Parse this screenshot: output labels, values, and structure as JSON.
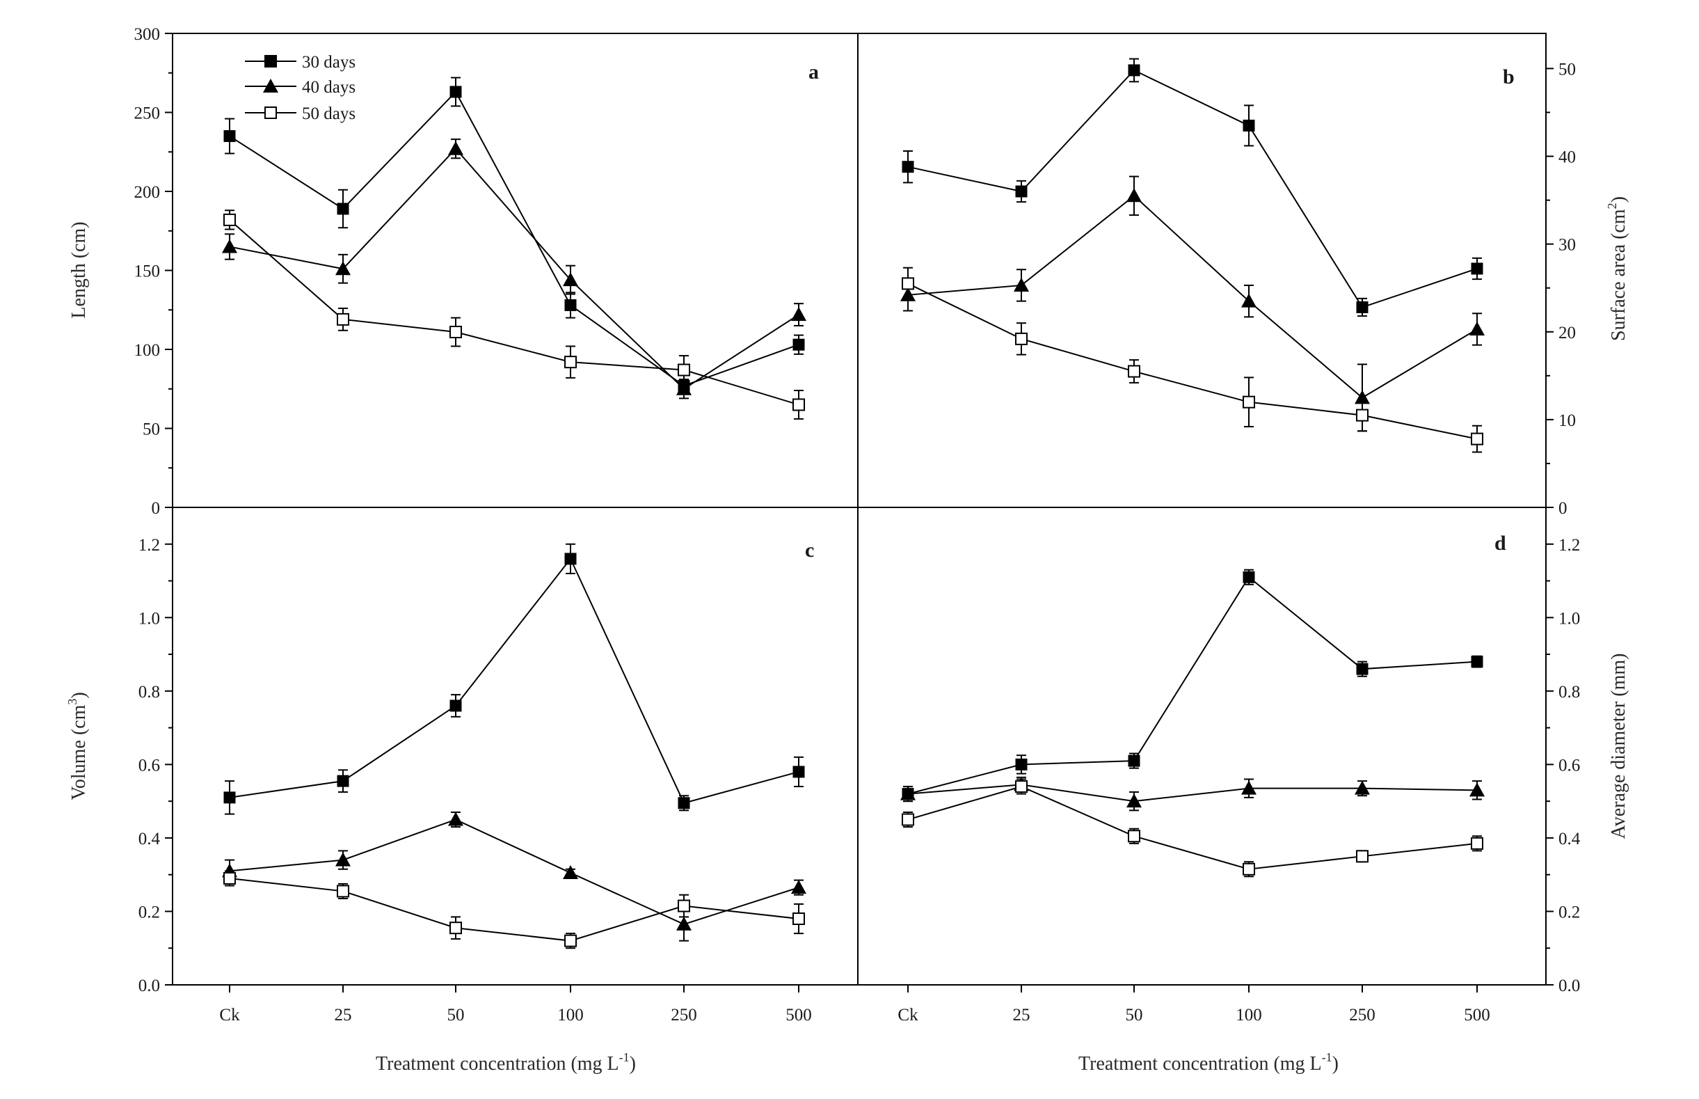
{
  "figure": {
    "xlabel_a": "Treatment concentration (mg L",
    "xlabel_b": "Treatment concentration  (mg L",
    "xlabel_sup": "-1",
    "xlabel_close": ")"
  },
  "legend": {
    "items": [
      "30 days",
      "40 days",
      "50 days"
    ]
  },
  "chart_data": [
    {
      "panel": "a",
      "type": "line",
      "title": "",
      "ylabel": "Length (cm)",
      "ylabel_sup": "",
      "ylabel_suffix": "",
      "ylim": [
        0,
        300
      ],
      "yticks": [
        "0",
        "50",
        "100",
        "150",
        "200",
        "250",
        "300"
      ],
      "categories": [
        "Ck",
        "25",
        "50",
        "100",
        "250",
        "500"
      ],
      "series": [
        {
          "name": "30 days",
          "marker": "filled-square",
          "values": [
            235,
            189,
            263,
            128,
            77,
            103
          ],
          "errors": [
            11,
            12,
            9,
            8,
            4,
            6
          ]
        },
        {
          "name": "40 days",
          "marker": "filled-triangle",
          "values": [
            165,
            151,
            227,
            144,
            75,
            122
          ],
          "errors": [
            8,
            9,
            6,
            9,
            6,
            7
          ]
        },
        {
          "name": "50 days",
          "marker": "open-square",
          "values": [
            182,
            119,
            111,
            92,
            87,
            65
          ],
          "errors": [
            6,
            7,
            9,
            10,
            9,
            9
          ]
        }
      ]
    },
    {
      "panel": "b",
      "type": "line",
      "title": "",
      "ylabel": "Surface area  (cm",
      "ylabel_sup": "2",
      "ylabel_suffix": ")",
      "ylim": [
        0,
        54
      ],
      "yticks": [
        "0",
        "10",
        "20",
        "30",
        "40",
        "50"
      ],
      "categories": [
        "Ck",
        "25",
        "50",
        "100",
        "250",
        "500"
      ],
      "series": [
        {
          "name": "30 days",
          "marker": "filled-square",
          "values": [
            38.8,
            36.0,
            49.8,
            43.5,
            22.8,
            27.2
          ],
          "errors": [
            1.8,
            1.2,
            1.3,
            2.3,
            1.0,
            1.2
          ]
        },
        {
          "name": "40 days",
          "marker": "filled-triangle",
          "values": [
            24.2,
            25.3,
            35.5,
            23.5,
            12.5,
            20.3
          ],
          "errors": [
            1.8,
            1.8,
            2.2,
            1.8,
            3.8,
            1.8
          ]
        },
        {
          "name": "50 days",
          "marker": "open-square",
          "values": [
            25.5,
            19.2,
            15.5,
            12.0,
            10.5,
            7.8
          ],
          "errors": [
            1.8,
            1.8,
            1.3,
            2.8,
            1.8,
            1.5
          ]
        }
      ]
    },
    {
      "panel": "c",
      "type": "line",
      "title": "",
      "ylabel": "Volume (cm",
      "ylabel_sup": "3",
      "ylabel_suffix": ")",
      "ylim": [
        0,
        1.3
      ],
      "yticks": [
        "0.0",
        "0.2",
        "0.4",
        "0.6",
        "0.8",
        "1.0",
        "1.2"
      ],
      "categories": [
        "Ck",
        "25",
        "50",
        "100",
        "250",
        "500"
      ],
      "series": [
        {
          "name": "30 days",
          "marker": "filled-square",
          "values": [
            0.51,
            0.555,
            0.76,
            1.16,
            0.495,
            0.58
          ],
          "errors": [
            0.045,
            0.03,
            0.03,
            0.04,
            0.02,
            0.04
          ]
        },
        {
          "name": "40 days",
          "marker": "filled-triangle",
          "values": [
            0.31,
            0.34,
            0.45,
            0.305,
            0.165,
            0.265
          ],
          "errors": [
            0.03,
            0.025,
            0.02,
            0.01,
            0.045,
            0.02
          ]
        },
        {
          "name": "50 days",
          "marker": "open-square",
          "values": [
            0.29,
            0.255,
            0.155,
            0.12,
            0.215,
            0.18
          ],
          "errors": [
            0.02,
            0.02,
            0.03,
            0.02,
            0.03,
            0.04
          ]
        }
      ]
    },
    {
      "panel": "d",
      "type": "line",
      "title": "",
      "ylabel": "Average diameter  (mm)",
      "ylabel_sup": "",
      "ylabel_suffix": "",
      "ylim": [
        0,
        1.3
      ],
      "yticks": [
        "0.0",
        "0.2",
        "0.4",
        "0.6",
        "0.8",
        "1.0",
        "1.2"
      ],
      "categories": [
        "Ck",
        "25",
        "50",
        "100",
        "250",
        "500"
      ],
      "series": [
        {
          "name": "30 days",
          "marker": "filled-square",
          "values": [
            0.52,
            0.6,
            0.61,
            1.11,
            0.86,
            0.88
          ],
          "errors": [
            0.02,
            0.025,
            0.02,
            0.02,
            0.02,
            0.015
          ]
        },
        {
          "name": "40 days",
          "marker": "filled-triangle",
          "values": [
            0.52,
            0.545,
            0.5,
            0.535,
            0.535,
            0.53
          ],
          "errors": [
            0.02,
            0.02,
            0.025,
            0.025,
            0.02,
            0.025
          ]
        },
        {
          "name": "50 days",
          "marker": "open-square",
          "values": [
            0.45,
            0.54,
            0.405,
            0.315,
            0.35,
            0.385
          ],
          "errors": [
            0.02,
            0.02,
            0.02,
            0.02,
            0.015,
            0.02
          ]
        }
      ]
    }
  ]
}
